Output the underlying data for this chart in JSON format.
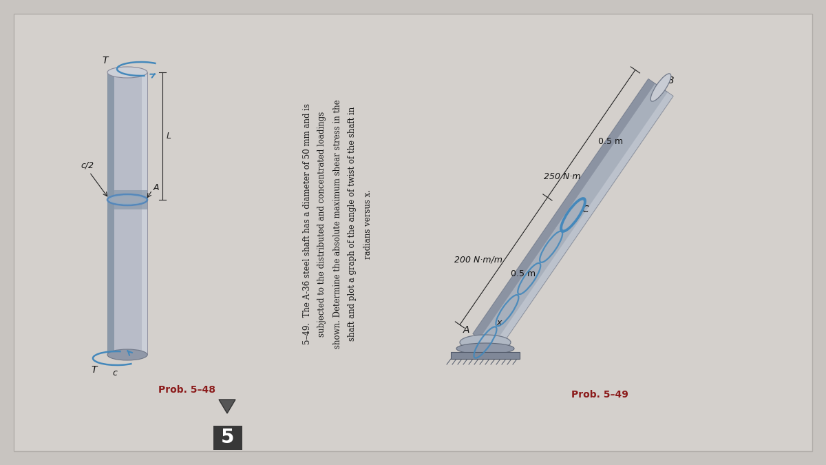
{
  "bg_color": "#c8c4c0",
  "page_color": "#d8d4d0",
  "title_48": "Prob. 5–48",
  "title_49": "Prob. 5–49",
  "prob_number": "5",
  "problem_text_49_line1": "5–49.  The A-36 steel shaft has a diameter of 50 mm and is",
  "problem_text_49_line2": "subjected to the distributed and concentrated loadings",
  "problem_text_49_line3": "shown. Determine the absolute maximum shear stress in the",
  "problem_text_49_line4": "shaft and plot a graph of the angle of twist of the shaft in",
  "problem_text_49_line5": "radians versus x.",
  "label_200": "200 N·m/m",
  "label_250": "250 N·m",
  "label_05m_1": "0.5 m",
  "label_05m_2": "0.5 m",
  "ring_color": "#4488bb",
  "shaft_fill": "#a8b0bc",
  "shaft_dark": "#7880900",
  "text_color_main": "#1a1a1a",
  "text_color_prob": "#8b1a1a",
  "font_size_prob": 10,
  "font_size_text": 8.5,
  "font_size_label": 9
}
